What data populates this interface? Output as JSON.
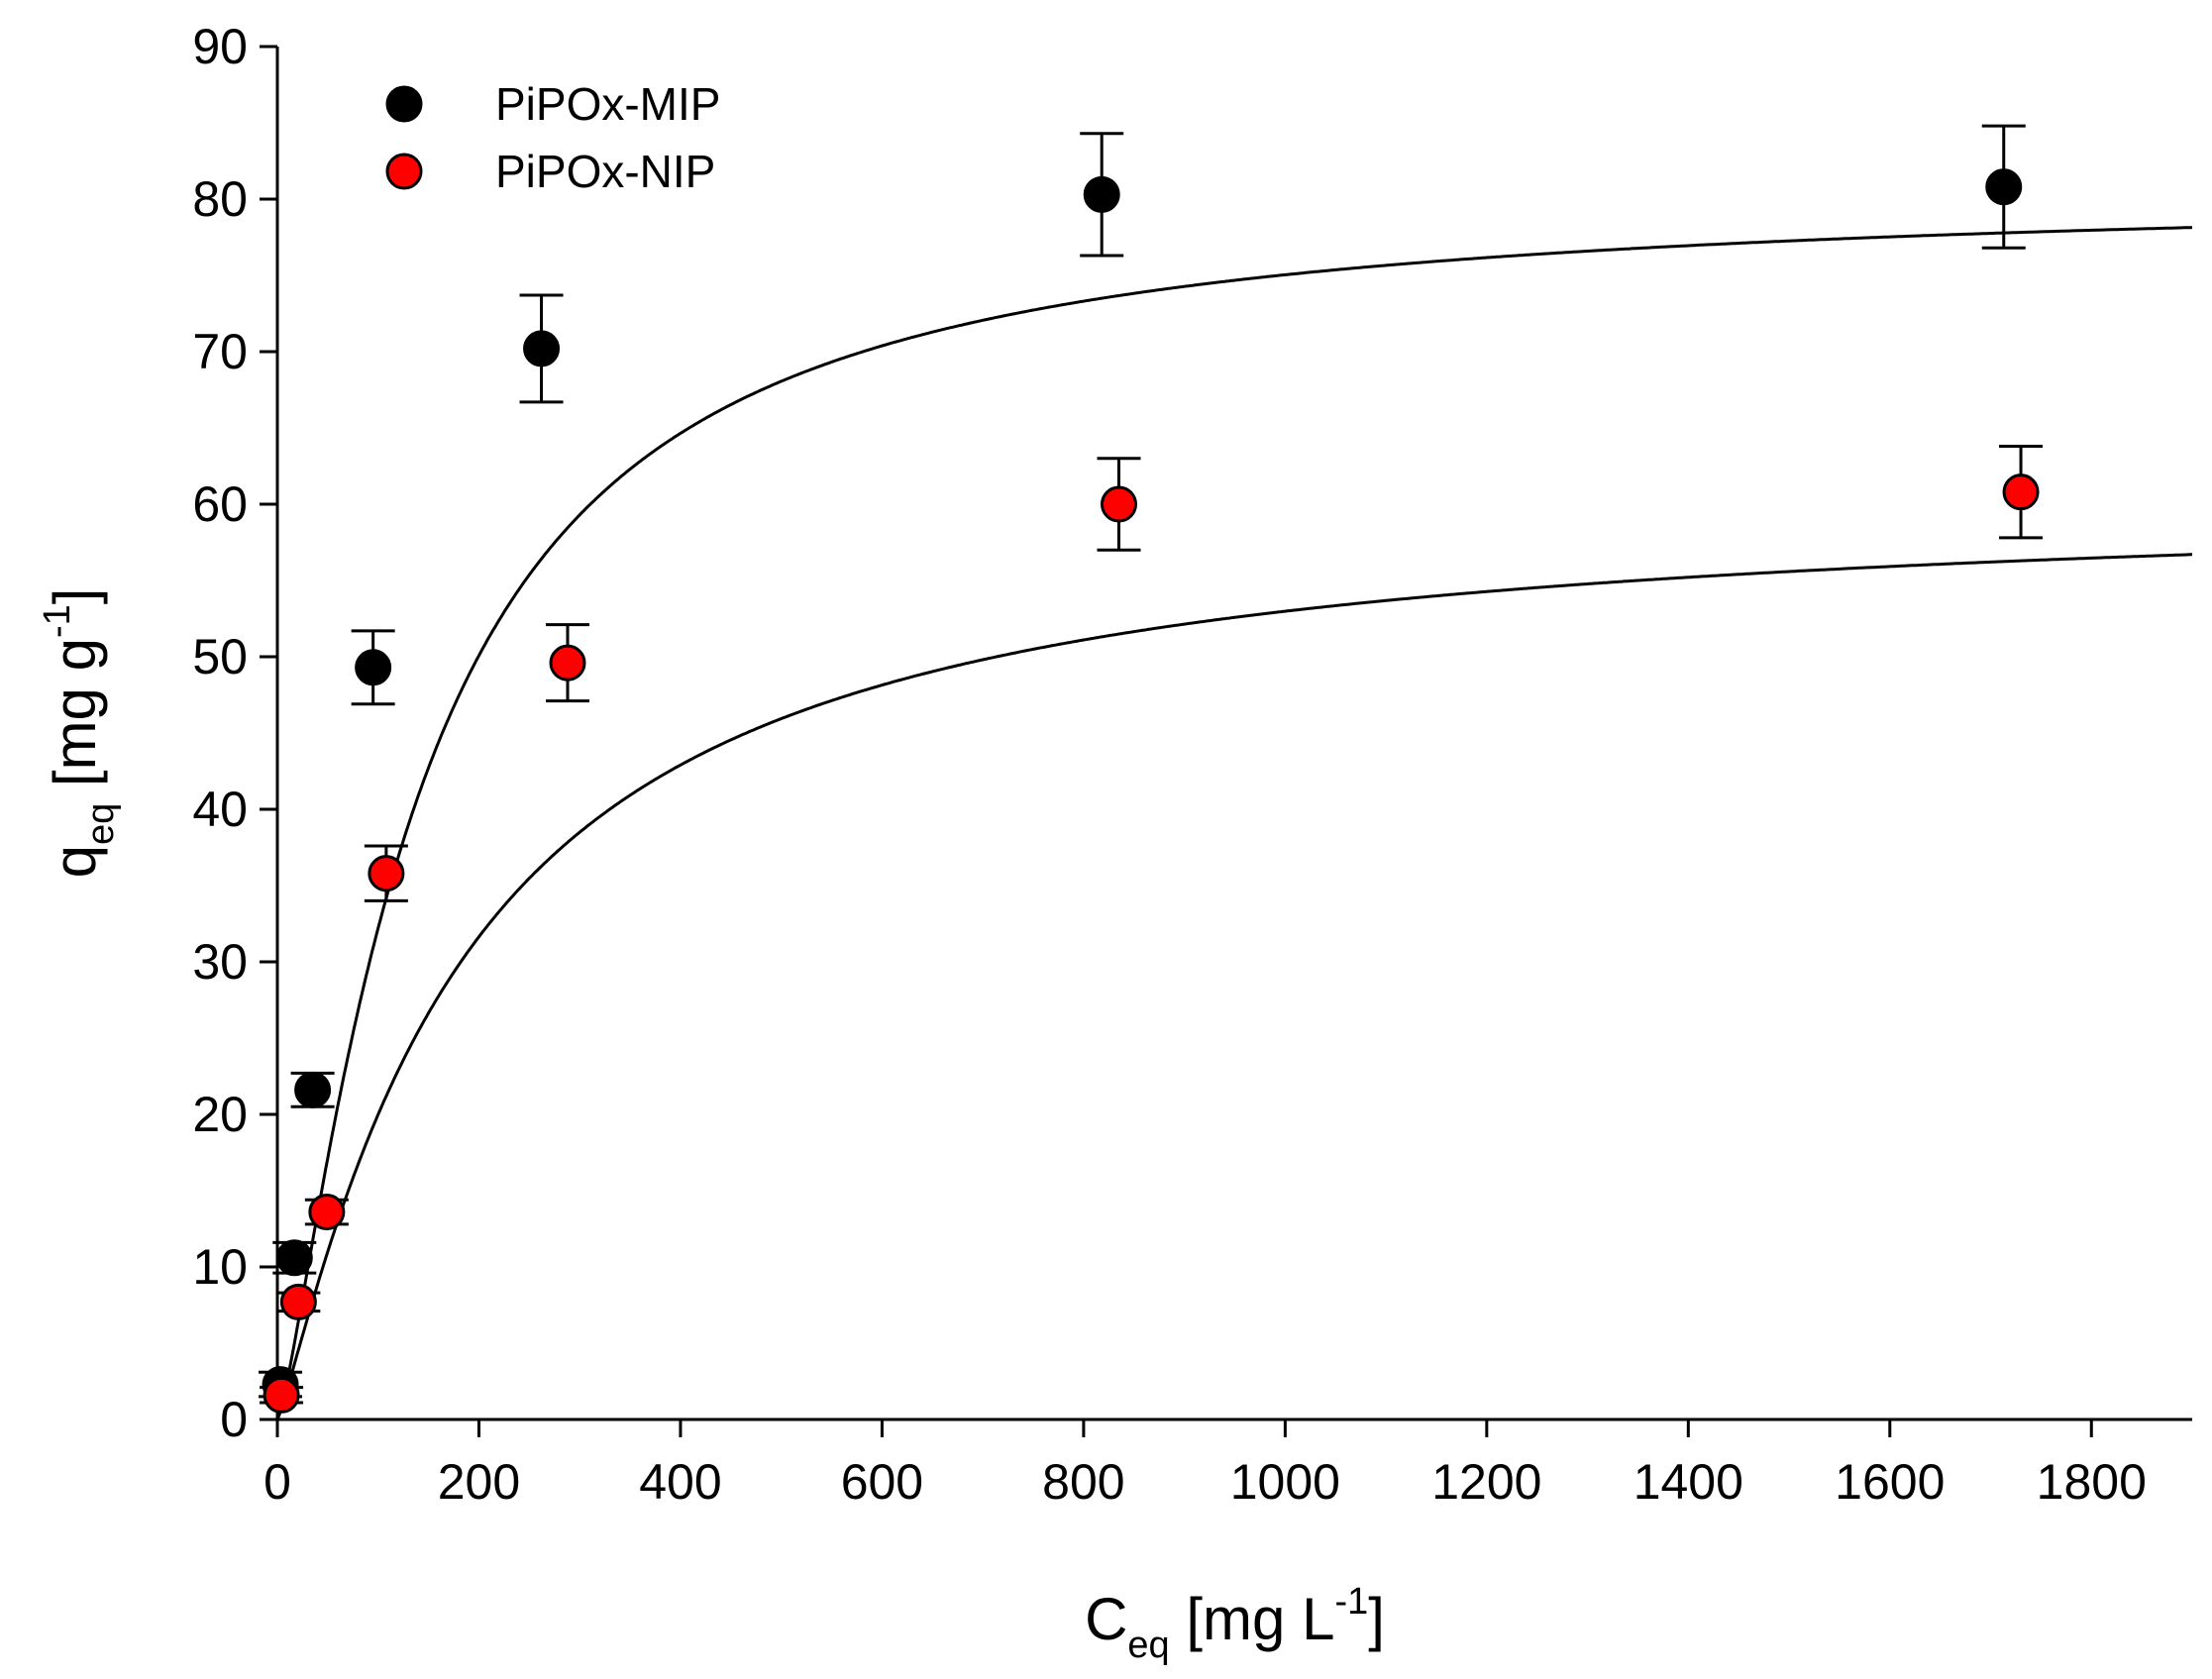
{
  "chart_data": {
    "type": "scatter",
    "title": "",
    "xlabel": {
      "main": "C",
      "sub": "eq",
      "rest": " [mg L",
      "sup": "-1",
      "end": "]"
    },
    "ylabel": {
      "main": "q",
      "sub": "eq",
      "rest": " [mg g",
      "sup": "-1",
      "end": "]"
    },
    "xlim": [
      0,
      1900
    ],
    "ylim": [
      0,
      90
    ],
    "x_ticks": [
      0,
      200,
      400,
      600,
      800,
      1000,
      1200,
      1400,
      1600,
      1800
    ],
    "y_ticks": [
      0,
      10,
      20,
      30,
      40,
      50,
      60,
      70,
      80,
      90
    ],
    "grid": false,
    "legend_position": "top-left",
    "series": [
      {
        "name": "PiPOx-MIP",
        "color": "#000000",
        "points": [
          {
            "x": 3,
            "y": 2.3,
            "err": 0.8
          },
          {
            "x": 17,
            "y": 10.6,
            "err": 1.0
          },
          {
            "x": 35,
            "y": 21.6,
            "err": 1.1
          },
          {
            "x": 95,
            "y": 49.3,
            "err": 2.4
          },
          {
            "x": 262,
            "y": 70.2,
            "err": 3.5
          },
          {
            "x": 818,
            "y": 80.3,
            "err": 4.0
          },
          {
            "x": 1713,
            "y": 80.8,
            "err": 4.0
          }
        ],
        "fit": {
          "qmax": 80.7,
          "k": 0.0073,
          "n": 1.3
        }
      },
      {
        "name": "PiPOx-NIP",
        "color": "#ff0000",
        "points": [
          {
            "x": 4,
            "y": 1.6,
            "err": 0.5
          },
          {
            "x": 21,
            "y": 7.7,
            "err": 0.6
          },
          {
            "x": 49,
            "y": 13.6,
            "err": 0.8
          },
          {
            "x": 108,
            "y": 35.8,
            "err": 1.8
          },
          {
            "x": 288,
            "y": 49.6,
            "err": 2.5
          },
          {
            "x": 835,
            "y": 60.0,
            "err": 3.0
          },
          {
            "x": 1730,
            "y": 60.8,
            "err": 3.0
          }
        ],
        "fit": {
          "qmax": 60.6,
          "k": 0.0054,
          "n": 1.15
        }
      }
    ]
  }
}
